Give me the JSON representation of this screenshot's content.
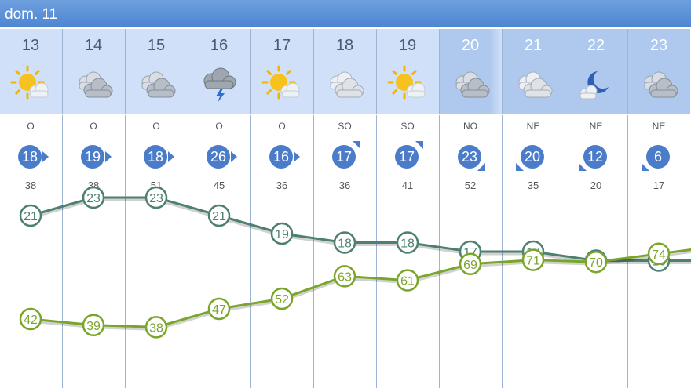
{
  "header": {
    "date": "dom. 11"
  },
  "hours": [
    {
      "hour": "13",
      "icon": "sun-cloud-icon",
      "dir": "O",
      "wind": "18",
      "gust": "38",
      "arrow": "e",
      "night": false
    },
    {
      "hour": "14",
      "icon": "cloudy-icon",
      "dir": "O",
      "wind": "19",
      "gust": "38",
      "arrow": "e",
      "night": false
    },
    {
      "hour": "15",
      "icon": "cloudy-icon",
      "dir": "O",
      "wind": "18",
      "gust": "51",
      "arrow": "e",
      "night": false
    },
    {
      "hour": "16",
      "icon": "storm-cloud-icon",
      "dir": "O",
      "wind": "26",
      "gust": "45",
      "arrow": "e",
      "night": false
    },
    {
      "hour": "17",
      "icon": "sun-cloud-icon",
      "dir": "O",
      "wind": "16",
      "gust": "36",
      "arrow": "e",
      "night": false
    },
    {
      "hour": "18",
      "icon": "light-cloud-icon",
      "dir": "SO",
      "wind": "17",
      "gust": "36",
      "arrow": "ne",
      "night": false
    },
    {
      "hour": "19",
      "icon": "sun-cloud-icon",
      "dir": "SO",
      "wind": "17",
      "gust": "41",
      "arrow": "ne",
      "night": false
    },
    {
      "hour": "20",
      "icon": "cloudy-icon",
      "dir": "NO",
      "wind": "23",
      "gust": "52",
      "arrow": "se",
      "night": true
    },
    {
      "hour": "21",
      "icon": "light-cloud-icon",
      "dir": "NE",
      "wind": "20",
      "gust": "35",
      "arrow": "sw",
      "night": true
    },
    {
      "hour": "22",
      "icon": "moon-cloud-icon",
      "dir": "NE",
      "wind": "12",
      "gust": "20",
      "arrow": "sw",
      "night": true
    },
    {
      "hour": "23",
      "icon": "cloudy-icon",
      "dir": "NE",
      "wind": "6",
      "gust": "17",
      "arrow": "sw",
      "night": true
    }
  ],
  "chart_data": {
    "type": "line",
    "x": [
      "13",
      "14",
      "15",
      "16",
      "17",
      "18",
      "19",
      "20",
      "21",
      "22",
      "23"
    ],
    "series": [
      {
        "values": [
          21,
          23,
          23,
          21,
          19,
          18,
          18,
          17,
          17,
          16,
          16
        ],
        "color": "#4d8070"
      },
      {
        "values": [
          42,
          39,
          38,
          47,
          52,
          63,
          61,
          69,
          71,
          70,
          74
        ],
        "color": "#7aa52b"
      }
    ]
  },
  "colors": {
    "header": "#5089d5",
    "day": "#cfe0f8",
    "night": "#aec8ee",
    "wind": "#4a7cc9"
  }
}
